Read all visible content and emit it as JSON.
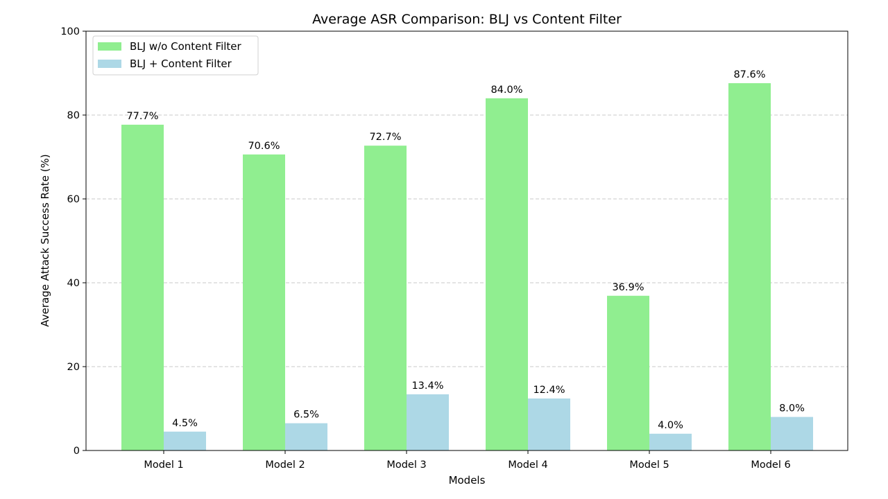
{
  "chart_data": {
    "type": "bar",
    "title": "Average ASR Comparison: BLJ vs Content Filter",
    "xlabel": "Models",
    "ylabel": "Average Attack Success Rate (%)",
    "categories": [
      "Model 1",
      "Model 2",
      "Model 3",
      "Model 4",
      "Model 5",
      "Model 6"
    ],
    "series": [
      {
        "name": "BLJ w/o Content Filter",
        "color": "#90ee90",
        "values": [
          77.7,
          70.6,
          72.7,
          84.0,
          36.9,
          87.6
        ],
        "labels": [
          "77.7%",
          "70.6%",
          "72.7%",
          "84.0%",
          "36.9%",
          "87.6%"
        ]
      },
      {
        "name": "BLJ + Content Filter",
        "color": "#add8e6",
        "values": [
          4.5,
          6.5,
          13.4,
          12.4,
          4.0,
          8.0
        ],
        "labels": [
          "4.5%",
          "6.5%",
          "13.4%",
          "12.4%",
          "4.0%",
          "8.0%"
        ]
      }
    ],
    "ylim": [
      0,
      100
    ],
    "yticks": [
      0,
      20,
      40,
      60,
      80,
      100
    ],
    "grid": "horizontal dashed",
    "legend_position": "upper-left"
  }
}
